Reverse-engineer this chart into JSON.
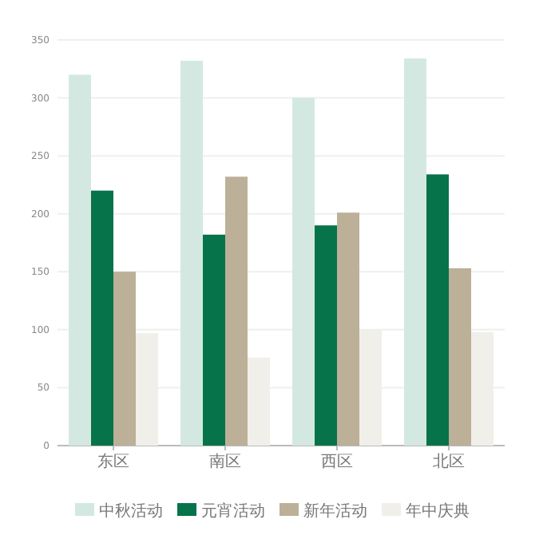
{
  "chart_data": {
    "type": "bar",
    "categories": [
      "东区",
      "南区",
      "西区",
      "北区"
    ],
    "series": [
      {
        "name": "中秋活动",
        "color": "#d4e8e2",
        "values": [
          320,
          332,
          300,
          334
        ]
      },
      {
        "name": "元宵活动",
        "color": "#07734a",
        "values": [
          220,
          182,
          190,
          234
        ]
      },
      {
        "name": "新年活动",
        "color": "#bcb098",
        "values": [
          150,
          232,
          201,
          153
        ]
      },
      {
        "name": "年中庆典",
        "color": "#f0efea",
        "values": [
          97,
          76,
          100,
          98
        ]
      }
    ],
    "ylim": [
      0,
      350
    ],
    "yticks": [
      0,
      50,
      100,
      150,
      200,
      250,
      300,
      350
    ],
    "grid": "y",
    "legend": "bottom"
  }
}
